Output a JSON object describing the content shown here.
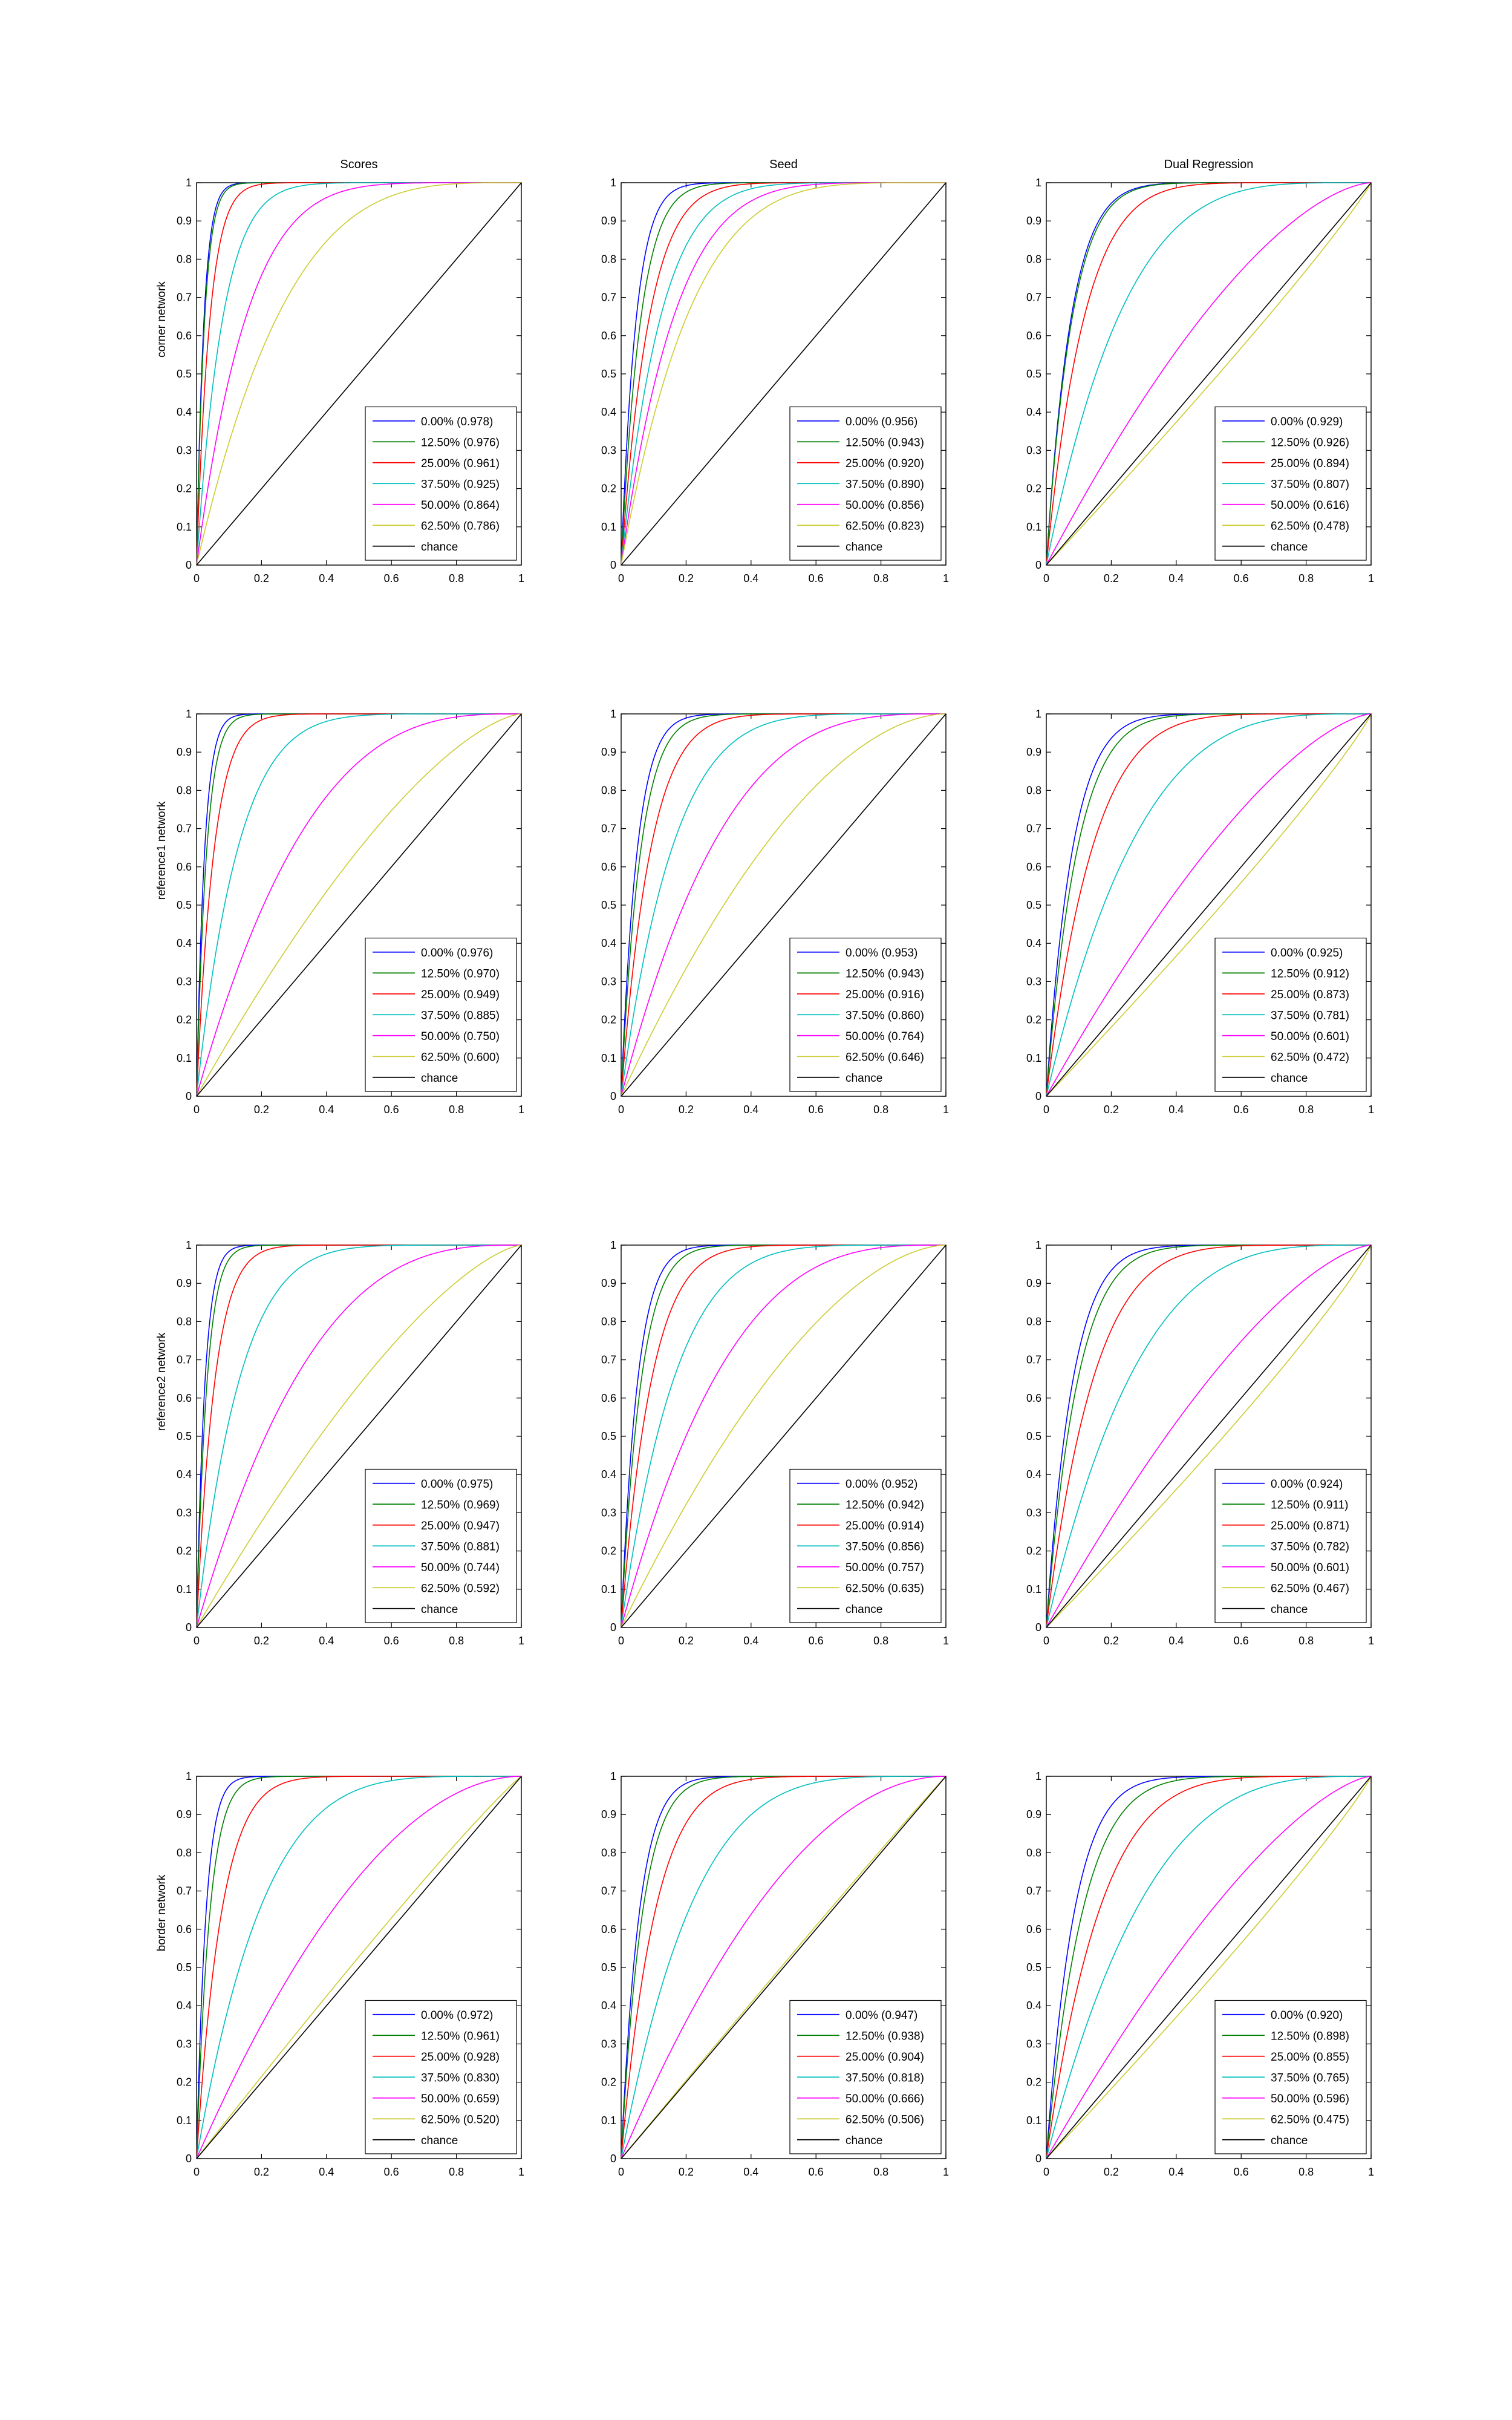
{
  "colors": {
    "series": [
      "#0000ff",
      "#008000",
      "#ff0000",
      "#00bfbf",
      "#ff00ff",
      "#cccc33",
      "#000000"
    ],
    "axis": "#000000",
    "background": "#ffffff"
  },
  "column_titles": [
    "Scores",
    "Seed",
    "Dual Regression"
  ],
  "row_labels": [
    "corner network",
    "reference1 network",
    "reference2 network",
    "border network"
  ],
  "chart_data": [
    {
      "type": "line",
      "panel": "corner-scores",
      "xlim": [
        0,
        1
      ],
      "ylim": [
        0,
        1
      ],
      "xticks": [
        "0",
        "0.2",
        "0.4",
        "0.6",
        "0.8",
        "1"
      ],
      "yticks": [
        "0",
        "0.1",
        "0.2",
        "0.3",
        "0.4",
        "0.5",
        "0.6",
        "0.7",
        "0.8",
        "0.9",
        "1"
      ],
      "legend_position": "bottom-right",
      "series": [
        {
          "name": "0.00% (0.978)",
          "auc": 0.978
        },
        {
          "name": "12.50% (0.976)",
          "auc": 0.976
        },
        {
          "name": "25.00% (0.961)",
          "auc": 0.961
        },
        {
          "name": "37.50% (0.925)",
          "auc": 0.925
        },
        {
          "name": "50.00% (0.864)",
          "auc": 0.864
        },
        {
          "name": "62.50% (0.786)",
          "auc": 0.786
        },
        {
          "name": "chance",
          "auc": 0.5
        }
      ]
    },
    {
      "type": "line",
      "panel": "corner-seed",
      "xlim": [
        0,
        1
      ],
      "ylim": [
        0,
        1
      ],
      "xticks": [
        "0",
        "0.2",
        "0.4",
        "0.6",
        "0.8",
        "1"
      ],
      "yticks": [
        "0",
        "0.1",
        "0.2",
        "0.3",
        "0.4",
        "0.5",
        "0.6",
        "0.7",
        "0.8",
        "0.9",
        "1"
      ],
      "legend_position": "bottom-right",
      "series": [
        {
          "name": "0.00% (0.956)",
          "auc": 0.956
        },
        {
          "name": "12.50% (0.943)",
          "auc": 0.943
        },
        {
          "name": "25.00% (0.920)",
          "auc": 0.92
        },
        {
          "name": "37.50% (0.890)",
          "auc": 0.89
        },
        {
          "name": "50.00% (0.856)",
          "auc": 0.856
        },
        {
          "name": "62.50% (0.823)",
          "auc": 0.823
        },
        {
          "name": "chance",
          "auc": 0.5
        }
      ]
    },
    {
      "type": "line",
      "panel": "corner-dual-regression",
      "xlim": [
        0,
        1
      ],
      "ylim": [
        0,
        1
      ],
      "xticks": [
        "0",
        "0.2",
        "0.4",
        "0.6",
        "0.8",
        "1"
      ],
      "yticks": [
        "0",
        "0.1",
        "0.2",
        "0.3",
        "0.4",
        "0.5",
        "0.6",
        "0.7",
        "0.8",
        "0.9",
        "1"
      ],
      "legend_position": "bottom-right",
      "series": [
        {
          "name": "0.00% (0.929)",
          "auc": 0.929
        },
        {
          "name": "12.50% (0.926)",
          "auc": 0.926
        },
        {
          "name": "25.00% (0.894)",
          "auc": 0.894
        },
        {
          "name": "37.50% (0.807)",
          "auc": 0.807
        },
        {
          "name": "50.00% (0.616)",
          "auc": 0.616
        },
        {
          "name": "62.50% (0.478)",
          "auc": 0.478
        },
        {
          "name": "chance",
          "auc": 0.5
        }
      ]
    },
    {
      "type": "line",
      "panel": "reference1-scores",
      "xlim": [
        0,
        1
      ],
      "ylim": [
        0,
        1
      ],
      "xticks": [
        "0",
        "0.2",
        "0.4",
        "0.6",
        "0.8",
        "1"
      ],
      "yticks": [
        "0",
        "0.1",
        "0.2",
        "0.3",
        "0.4",
        "0.5",
        "0.6",
        "0.7",
        "0.8",
        "0.9",
        "1"
      ],
      "legend_position": "bottom-right",
      "series": [
        {
          "name": "0.00% (0.976)",
          "auc": 0.976
        },
        {
          "name": "12.50% (0.970)",
          "auc": 0.97
        },
        {
          "name": "25.00% (0.949)",
          "auc": 0.949
        },
        {
          "name": "37.50% (0.885)",
          "auc": 0.885
        },
        {
          "name": "50.00% (0.750)",
          "auc": 0.75
        },
        {
          "name": "62.50% (0.600)",
          "auc": 0.6
        },
        {
          "name": "chance",
          "auc": 0.5
        }
      ]
    },
    {
      "type": "line",
      "panel": "reference1-seed",
      "xlim": [
        0,
        1
      ],
      "ylim": [
        0,
        1
      ],
      "xticks": [
        "0",
        "0.2",
        "0.4",
        "0.6",
        "0.8",
        "1"
      ],
      "yticks": [
        "0",
        "0.1",
        "0.2",
        "0.3",
        "0.4",
        "0.5",
        "0.6",
        "0.7",
        "0.8",
        "0.9",
        "1"
      ],
      "legend_position": "bottom-right",
      "series": [
        {
          "name": "0.00% (0.953)",
          "auc": 0.953
        },
        {
          "name": "12.50% (0.943)",
          "auc": 0.943
        },
        {
          "name": "25.00% (0.916)",
          "auc": 0.916
        },
        {
          "name": "37.50% (0.860)",
          "auc": 0.86
        },
        {
          "name": "50.00% (0.764)",
          "auc": 0.764
        },
        {
          "name": "62.50% (0.646)",
          "auc": 0.646
        },
        {
          "name": "chance",
          "auc": 0.5
        }
      ]
    },
    {
      "type": "line",
      "panel": "reference1-dual-regression",
      "xlim": [
        0,
        1
      ],
      "ylim": [
        0,
        1
      ],
      "xticks": [
        "0",
        "0.2",
        "0.4",
        "0.6",
        "0.8",
        "1"
      ],
      "yticks": [
        "0",
        "0.1",
        "0.2",
        "0.3",
        "0.4",
        "0.5",
        "0.6",
        "0.7",
        "0.8",
        "0.9",
        "1"
      ],
      "legend_position": "bottom-right",
      "series": [
        {
          "name": "0.00% (0.925)",
          "auc": 0.925
        },
        {
          "name": "12.50% (0.912)",
          "auc": 0.912
        },
        {
          "name": "25.00% (0.873)",
          "auc": 0.873
        },
        {
          "name": "37.50% (0.781)",
          "auc": 0.781
        },
        {
          "name": "50.00% (0.601)",
          "auc": 0.601
        },
        {
          "name": "62.50% (0.472)",
          "auc": 0.472
        },
        {
          "name": "chance",
          "auc": 0.5
        }
      ]
    },
    {
      "type": "line",
      "panel": "reference2-scores",
      "xlim": [
        0,
        1
      ],
      "ylim": [
        0,
        1
      ],
      "xticks": [
        "0",
        "0.2",
        "0.4",
        "0.6",
        "0.8",
        "1"
      ],
      "yticks": [
        "0",
        "0.1",
        "0.2",
        "0.3",
        "0.4",
        "0.5",
        "0.6",
        "0.7",
        "0.8",
        "0.9",
        "1"
      ],
      "legend_position": "bottom-right",
      "series": [
        {
          "name": "0.00% (0.975)",
          "auc": 0.975
        },
        {
          "name": "12.50% (0.969)",
          "auc": 0.969
        },
        {
          "name": "25.00% (0.947)",
          "auc": 0.947
        },
        {
          "name": "37.50% (0.881)",
          "auc": 0.881
        },
        {
          "name": "50.00% (0.744)",
          "auc": 0.744
        },
        {
          "name": "62.50% (0.592)",
          "auc": 0.592
        },
        {
          "name": "chance",
          "auc": 0.5
        }
      ]
    },
    {
      "type": "line",
      "panel": "reference2-seed",
      "xlim": [
        0,
        1
      ],
      "ylim": [
        0,
        1
      ],
      "xticks": [
        "0",
        "0.2",
        "0.4",
        "0.6",
        "0.8",
        "1"
      ],
      "yticks": [
        "0",
        "0.1",
        "0.2",
        "0.3",
        "0.4",
        "0.5",
        "0.6",
        "0.7",
        "0.8",
        "0.9",
        "1"
      ],
      "legend_position": "bottom-right",
      "series": [
        {
          "name": "0.00% (0.952)",
          "auc": 0.952
        },
        {
          "name": "12.50% (0.942)",
          "auc": 0.942
        },
        {
          "name": "25.00% (0.914)",
          "auc": 0.914
        },
        {
          "name": "37.50% (0.856)",
          "auc": 0.856
        },
        {
          "name": "50.00% (0.757)",
          "auc": 0.757
        },
        {
          "name": "62.50% (0.635)",
          "auc": 0.635
        },
        {
          "name": "chance",
          "auc": 0.5
        }
      ]
    },
    {
      "type": "line",
      "panel": "reference2-dual-regression",
      "xlim": [
        0,
        1
      ],
      "ylim": [
        0,
        1
      ],
      "xticks": [
        "0",
        "0.2",
        "0.4",
        "0.6",
        "0.8",
        "1"
      ],
      "yticks": [
        "0",
        "0.1",
        "0.2",
        "0.3",
        "0.4",
        "0.5",
        "0.6",
        "0.7",
        "0.8",
        "0.9",
        "1"
      ],
      "legend_position": "bottom-right",
      "series": [
        {
          "name": "0.00% (0.924)",
          "auc": 0.924
        },
        {
          "name": "12.50% (0.911)",
          "auc": 0.911
        },
        {
          "name": "25.00% (0.871)",
          "auc": 0.871
        },
        {
          "name": "37.50% (0.782)",
          "auc": 0.782
        },
        {
          "name": "50.00% (0.601)",
          "auc": 0.601
        },
        {
          "name": "62.50% (0.467)",
          "auc": 0.467
        },
        {
          "name": "chance",
          "auc": 0.5
        }
      ]
    },
    {
      "type": "line",
      "panel": "border-scores",
      "xlim": [
        0,
        1
      ],
      "ylim": [
        0,
        1
      ],
      "xticks": [
        "0",
        "0.2",
        "0.4",
        "0.6",
        "0.8",
        "1"
      ],
      "yticks": [
        "0",
        "0.1",
        "0.2",
        "0.3",
        "0.4",
        "0.5",
        "0.6",
        "0.7",
        "0.8",
        "0.9",
        "1"
      ],
      "legend_position": "bottom-right",
      "series": [
        {
          "name": "0.00% (0.972)",
          "auc": 0.972
        },
        {
          "name": "12.50% (0.961)",
          "auc": 0.961
        },
        {
          "name": "25.00% (0.928)",
          "auc": 0.928
        },
        {
          "name": "37.50% (0.830)",
          "auc": 0.83
        },
        {
          "name": "50.00% (0.659)",
          "auc": 0.659
        },
        {
          "name": "62.50% (0.520)",
          "auc": 0.52
        },
        {
          "name": "chance",
          "auc": 0.5
        }
      ]
    },
    {
      "type": "line",
      "panel": "border-seed",
      "xlim": [
        0,
        1
      ],
      "ylim": [
        0,
        1
      ],
      "xticks": [
        "0",
        "0.2",
        "0.4",
        "0.6",
        "0.8",
        "1"
      ],
      "yticks": [
        "0",
        "0.1",
        "0.2",
        "0.3",
        "0.4",
        "0.5",
        "0.6",
        "0.7",
        "0.8",
        "0.9",
        "1"
      ],
      "legend_position": "bottom-right",
      "series": [
        {
          "name": "0.00% (0.947)",
          "auc": 0.947
        },
        {
          "name": "12.50% (0.938)",
          "auc": 0.938
        },
        {
          "name": "25.00% (0.904)",
          "auc": 0.904
        },
        {
          "name": "37.50% (0.818)",
          "auc": 0.818
        },
        {
          "name": "50.00% (0.666)",
          "auc": 0.666
        },
        {
          "name": "62.50% (0.506)",
          "auc": 0.506
        },
        {
          "name": "chance",
          "auc": 0.5
        }
      ]
    },
    {
      "type": "line",
      "panel": "border-dual-regression",
      "xlim": [
        0,
        1
      ],
      "ylim": [
        0,
        1
      ],
      "xticks": [
        "0",
        "0.2",
        "0.4",
        "0.6",
        "0.8",
        "1"
      ],
      "yticks": [
        "0",
        "0.1",
        "0.2",
        "0.3",
        "0.4",
        "0.5",
        "0.6",
        "0.7",
        "0.8",
        "0.9",
        "1"
      ],
      "legend_position": "bottom-right",
      "series": [
        {
          "name": "0.00% (0.920)",
          "auc": 0.92
        },
        {
          "name": "12.50% (0.898)",
          "auc": 0.898
        },
        {
          "name": "25.00% (0.855)",
          "auc": 0.855
        },
        {
          "name": "37.50% (0.765)",
          "auc": 0.765
        },
        {
          "name": "50.00% (0.596)",
          "auc": 0.596
        },
        {
          "name": "62.50% (0.475)",
          "auc": 0.475
        },
        {
          "name": "chance",
          "auc": 0.5
        }
      ]
    }
  ]
}
